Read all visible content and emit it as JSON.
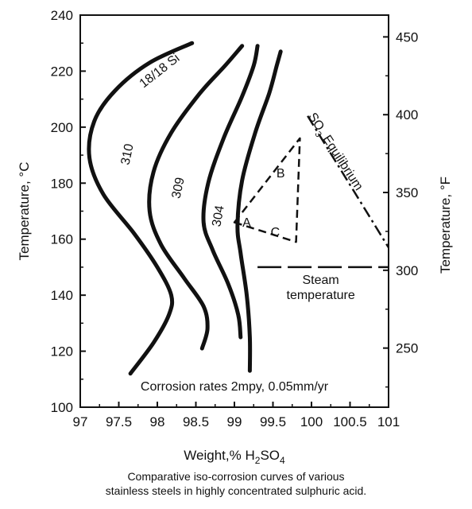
{
  "chart_data": {
    "type": "line",
    "xlabel_parts": [
      "Weight,% H",
      "2",
      "SO",
      "4"
    ],
    "ylabel_left": "Temperature, °C",
    "ylabel_right": "Temperature, °F",
    "xlim": [
      97,
      101
    ],
    "ylim": [
      100,
      240
    ],
    "x_ticks": [
      "97",
      "97.5",
      "98",
      "98.5",
      "99",
      "99.5",
      "100",
      "100.5",
      "101"
    ],
    "y_ticks": [
      "100",
      "120",
      "140",
      "160",
      "180",
      "200",
      "220",
      "240"
    ],
    "y2_ticks": [
      "250",
      "300",
      "350",
      "400",
      "450"
    ],
    "y2_tick_values_f": [
      250,
      300,
      350,
      400,
      450
    ],
    "series": [
      {
        "name": "18/18 Si",
        "points": [
          [
            97.65,
            112
          ],
          [
            97.95,
            123
          ],
          [
            98.15,
            133
          ],
          [
            98.18,
            140
          ],
          [
            98.0,
            150
          ],
          [
            97.7,
            162
          ],
          [
            97.3,
            176
          ],
          [
            97.12,
            189
          ],
          [
            97.18,
            202
          ],
          [
            97.45,
            213
          ],
          [
            97.9,
            223
          ],
          [
            98.45,
            230
          ]
        ]
      },
      {
        "name": "310",
        "points": [
          [
            98.58,
            121
          ],
          [
            98.65,
            128
          ],
          [
            98.6,
            136
          ],
          [
            98.35,
            146
          ],
          [
            98.05,
            158
          ],
          [
            97.9,
            170
          ],
          [
            97.95,
            184
          ],
          [
            98.18,
            198
          ],
          [
            98.55,
            212
          ],
          [
            98.88,
            222
          ],
          [
            99.1,
            229
          ]
        ]
      },
      {
        "name": "309",
        "points": [
          [
            99.08,
            125
          ],
          [
            99.05,
            133
          ],
          [
            98.92,
            144
          ],
          [
            98.72,
            156
          ],
          [
            98.6,
            166
          ],
          [
            98.66,
            180
          ],
          [
            98.86,
            196
          ],
          [
            99.1,
            211
          ],
          [
            99.25,
            222
          ],
          [
            99.3,
            229
          ]
        ]
      },
      {
        "name": "304",
        "points": [
          [
            99.2,
            113
          ],
          [
            99.2,
            125
          ],
          [
            99.16,
            140
          ],
          [
            99.08,
            155
          ],
          [
            99.04,
            165
          ],
          [
            99.1,
            181
          ],
          [
            99.27,
            198
          ],
          [
            99.45,
            212
          ],
          [
            99.55,
            222
          ],
          [
            99.6,
            227
          ]
        ]
      }
    ],
    "triangle": {
      "vertices": [
        {
          "label": "A",
          "x": 99.0,
          "y": 166
        },
        {
          "label": "B",
          "x": 99.85,
          "y": 196
        },
        {
          "label": "C",
          "x": 99.8,
          "y": 159
        }
      ]
    },
    "so3_equilibrium": {
      "label_parts": [
        "SO",
        "3",
        " Equilibrium"
      ],
      "points": [
        [
          99.95,
          204
        ],
        [
          101.0,
          157
        ]
      ]
    },
    "steam": {
      "label_lines": [
        "Steam",
        "temperature"
      ],
      "y": 150,
      "x_range": [
        99.3,
        101
      ]
    },
    "note": "Corrosion rates 2mpy, 0.05mm/yr"
  },
  "caption": {
    "line1": "Comparative iso-corrosion curves of various",
    "line2": "stainless steels in highly concentrated sulphuric acid."
  }
}
